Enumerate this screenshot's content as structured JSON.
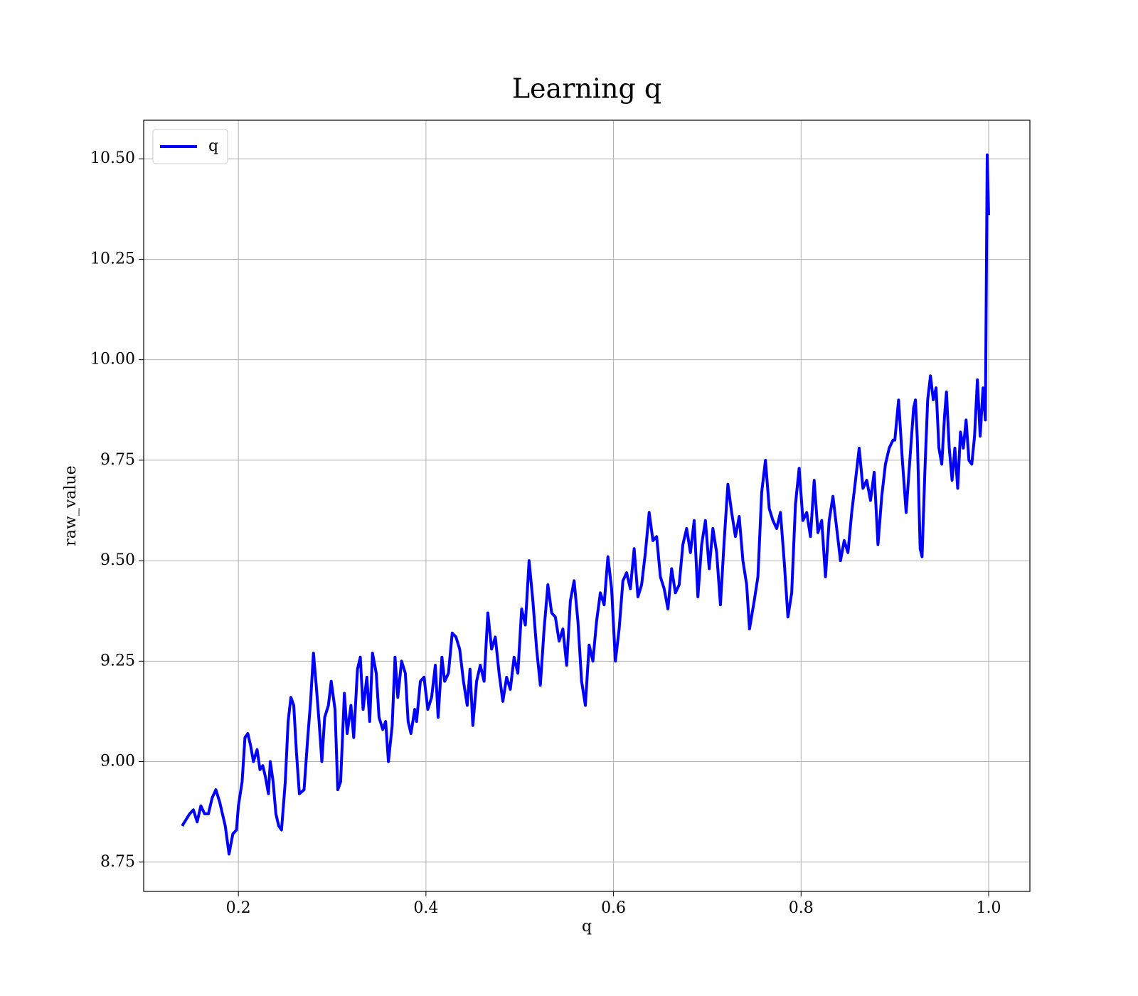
{
  "chart_data": {
    "type": "line",
    "title": "Learning q",
    "xlabel": "q",
    "ylabel": "raw_value",
    "x": [
      0.14,
      0.148,
      0.152,
      0.156,
      0.16,
      0.164,
      0.168,
      0.172,
      0.176,
      0.18,
      0.186,
      0.19,
      0.194,
      0.198,
      0.2,
      0.204,
      0.207,
      0.21,
      0.213,
      0.216,
      0.22,
      0.223,
      0.226,
      0.229,
      0.232,
      0.234,
      0.237,
      0.24,
      0.243,
      0.246,
      0.25,
      0.253,
      0.256,
      0.259,
      0.262,
      0.265,
      0.27,
      0.274,
      0.277,
      0.28,
      0.283,
      0.286,
      0.289,
      0.292,
      0.296,
      0.299,
      0.303,
      0.306,
      0.309,
      0.313,
      0.316,
      0.32,
      0.323,
      0.327,
      0.33,
      0.333,
      0.337,
      0.34,
      0.343,
      0.347,
      0.35,
      0.354,
      0.357,
      0.36,
      0.364,
      0.367,
      0.37,
      0.374,
      0.378,
      0.381,
      0.384,
      0.388,
      0.39,
      0.394,
      0.398,
      0.402,
      0.406,
      0.41,
      0.413,
      0.417,
      0.42,
      0.424,
      0.428,
      0.432,
      0.436,
      0.44,
      0.444,
      0.447,
      0.45,
      0.454,
      0.458,
      0.462,
      0.466,
      0.47,
      0.474,
      0.478,
      0.482,
      0.486,
      0.49,
      0.494,
      0.498,
      0.502,
      0.506,
      0.51,
      0.514,
      0.518,
      0.522,
      0.526,
      0.53,
      0.534,
      0.538,
      0.542,
      0.546,
      0.55,
      0.554,
      0.558,
      0.562,
      0.566,
      0.57,
      0.574,
      0.578,
      0.582,
      0.586,
      0.59,
      0.594,
      0.598,
      0.602,
      0.606,
      0.61,
      0.614,
      0.618,
      0.622,
      0.626,
      0.63,
      0.634,
      0.638,
      0.642,
      0.646,
      0.65,
      0.654,
      0.658,
      0.662,
      0.666,
      0.67,
      0.674,
      0.678,
      0.682,
      0.686,
      0.69,
      0.694,
      0.698,
      0.702,
      0.706,
      0.71,
      0.714,
      0.718,
      0.722,
      0.726,
      0.73,
      0.734,
      0.738,
      0.742,
      0.745,
      0.75,
      0.754,
      0.758,
      0.762,
      0.766,
      0.77,
      0.774,
      0.778,
      0.782,
      0.786,
      0.79,
      0.794,
      0.798,
      0.802,
      0.806,
      0.81,
      0.814,
      0.818,
      0.822,
      0.826,
      0.83,
      0.834,
      0.838,
      0.842,
      0.846,
      0.85,
      0.854,
      0.858,
      0.862,
      0.866,
      0.87,
      0.874,
      0.878,
      0.882,
      0.886,
      0.89,
      0.894,
      0.898,
      0.9,
      0.904,
      0.908,
      0.912,
      0.916,
      0.92,
      0.922,
      0.924,
      0.927,
      0.929,
      0.932,
      0.935,
      0.938,
      0.941,
      0.944,
      0.947,
      0.95,
      0.953,
      0.955,
      0.958,
      0.961,
      0.964,
      0.967,
      0.97,
      0.973,
      0.976,
      0.979,
      0.982,
      0.985,
      0.988,
      0.991,
      0.994,
      0.9965,
      0.9985,
      1.0
    ],
    "series": [
      {
        "name": "q",
        "color": "#0000ff",
        "values": [
          8.84,
          8.87,
          8.88,
          8.85,
          8.89,
          8.87,
          8.87,
          8.91,
          8.93,
          8.9,
          8.84,
          8.77,
          8.82,
          8.83,
          8.89,
          8.95,
          9.06,
          9.07,
          9.04,
          9.0,
          9.03,
          8.98,
          8.99,
          8.96,
          8.92,
          9.0,
          8.95,
          8.87,
          8.84,
          8.83,
          8.95,
          9.1,
          9.16,
          9.14,
          9.02,
          8.92,
          8.93,
          9.06,
          9.15,
          9.27,
          9.19,
          9.1,
          9.0,
          9.11,
          9.14,
          9.2,
          9.13,
          8.93,
          8.95,
          9.17,
          9.07,
          9.14,
          9.06,
          9.23,
          9.26,
          9.13,
          9.21,
          9.1,
          9.27,
          9.22,
          9.11,
          9.08,
          9.1,
          9.0,
          9.09,
          9.26,
          9.16,
          9.25,
          9.22,
          9.1,
          9.07,
          9.13,
          9.1,
          9.2,
          9.21,
          9.13,
          9.16,
          9.24,
          9.11,
          9.26,
          9.2,
          9.22,
          9.32,
          9.31,
          9.28,
          9.2,
          9.14,
          9.23,
          9.09,
          9.2,
          9.24,
          9.2,
          9.37,
          9.28,
          9.31,
          9.22,
          9.15,
          9.21,
          9.18,
          9.26,
          9.22,
          9.38,
          9.34,
          9.5,
          9.4,
          9.28,
          9.19,
          9.33,
          9.44,
          9.37,
          9.36,
          9.3,
          9.33,
          9.24,
          9.4,
          9.45,
          9.35,
          9.2,
          9.14,
          9.29,
          9.25,
          9.35,
          9.42,
          9.39,
          9.51,
          9.43,
          9.25,
          9.33,
          9.45,
          9.47,
          9.43,
          9.53,
          9.41,
          9.44,
          9.52,
          9.62,
          9.55,
          9.56,
          9.46,
          9.43,
          9.38,
          9.48,
          9.42,
          9.44,
          9.54,
          9.58,
          9.52,
          9.6,
          9.41,
          9.54,
          9.6,
          9.48,
          9.58,
          9.52,
          9.39,
          9.55,
          9.69,
          9.62,
          9.56,
          9.61,
          9.5,
          9.44,
          9.33,
          9.4,
          9.46,
          9.67,
          9.75,
          9.63,
          9.6,
          9.58,
          9.62,
          9.5,
          9.36,
          9.42,
          9.64,
          9.73,
          9.6,
          9.62,
          9.56,
          9.7,
          9.57,
          9.6,
          9.46,
          9.6,
          9.66,
          9.58,
          9.5,
          9.55,
          9.52,
          9.62,
          9.7,
          9.78,
          9.68,
          9.7,
          9.65,
          9.72,
          9.54,
          9.66,
          9.74,
          9.78,
          9.8,
          9.8,
          9.9,
          9.75,
          9.62,
          9.75,
          9.88,
          9.9,
          9.8,
          9.53,
          9.51,
          9.72,
          9.9,
          9.96,
          9.9,
          9.93,
          9.78,
          9.74,
          9.86,
          9.92,
          9.78,
          9.7,
          9.78,
          9.68,
          9.82,
          9.78,
          9.85,
          9.75,
          9.74,
          9.81,
          9.95,
          9.81,
          9.93,
          9.85,
          10.51,
          10.36
        ]
      }
    ],
    "xlim": [
      0.099,
      1.044
    ],
    "ylim": [
      8.677,
      10.596
    ],
    "xticks": [
      0.2,
      0.4,
      0.6,
      0.8,
      {
        "value": 1,
        "label": "1.0"
      }
    ],
    "yticks": [
      8.75,
      {
        "value": 9,
        "label": "9.00"
      },
      9.25,
      {
        "value": 9.5,
        "label": "9.50"
      },
      9.75,
      {
        "value": 10,
        "label": "10.00"
      },
      10.25,
      {
        "value": 10.5,
        "label": "10.50"
      }
    ],
    "grid": true,
    "legend": "upper left"
  }
}
